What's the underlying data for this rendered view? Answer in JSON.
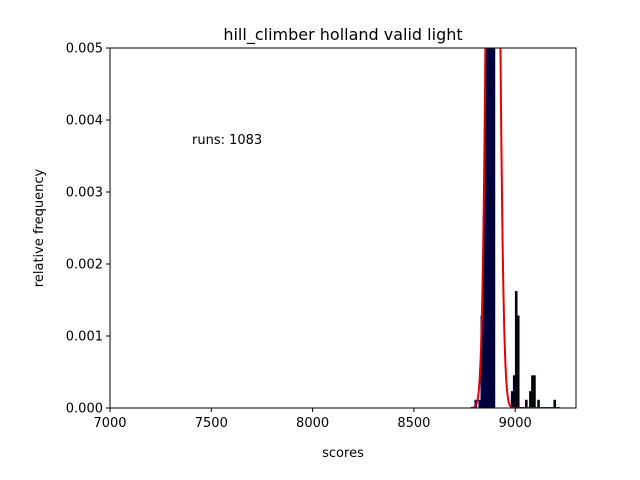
{
  "chart_data": {
    "type": "bar",
    "title": "hill_climber holland valid light",
    "xlabel": "scores",
    "ylabel": "relative frequency",
    "annotation": "runs: 1083",
    "xlim": [
      7000,
      9300
    ],
    "ylim": [
      0,
      0.005
    ],
    "xticks": [
      7000,
      7500,
      8000,
      8500,
      9000
    ],
    "xtick_labels": [
      "7000",
      "7500",
      "8000",
      "8500",
      "9000"
    ],
    "yticks": [
      0,
      0.001,
      0.002,
      0.003,
      0.004,
      0.005
    ],
    "ytick_labels": [
      "0.000",
      "0.001",
      "0.002",
      "0.003",
      "0.004",
      "0.005"
    ],
    "histogram": {
      "bin_width": 10,
      "bins": [
        {
          "x": 8800,
          "y": 0.00011
        },
        {
          "x": 8820,
          "y": 0.00011
        },
        {
          "x": 8830,
          "y": 0.00128
        },
        {
          "x": 8840,
          "y": 0.00266
        },
        {
          "x": 8850,
          "y": 0.005
        },
        {
          "x": 8860,
          "y": 0.005
        },
        {
          "x": 8870,
          "y": 0.005
        },
        {
          "x": 8880,
          "y": 0.005
        },
        {
          "x": 8890,
          "y": 0.005
        },
        {
          "x": 8980,
          "y": 0.00023
        },
        {
          "x": 8990,
          "y": 0.00045
        },
        {
          "x": 9000,
          "y": 0.00162
        },
        {
          "x": 9010,
          "y": 0.00128
        },
        {
          "x": 9050,
          "y": 0.00011
        },
        {
          "x": 9070,
          "y": 0.00023
        },
        {
          "x": 9080,
          "y": 0.00045
        },
        {
          "x": 9090,
          "y": 0.00045
        },
        {
          "x": 9110,
          "y": 0.00011
        },
        {
          "x": 9190,
          "y": 0.00011
        }
      ],
      "color": "#000000",
      "edge_color": "#000080"
    },
    "fit_curve": {
      "type": "normal",
      "mean": 8890,
      "std": 24,
      "x_range": [
        8780,
        9220
      ],
      "color": "#e60000"
    }
  }
}
